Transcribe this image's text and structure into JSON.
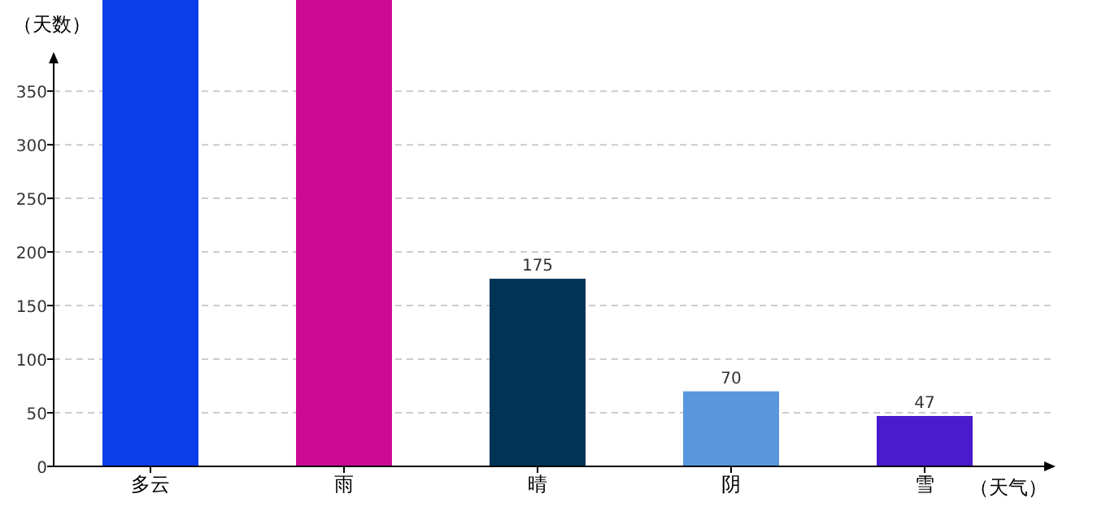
{
  "chart_data": {
    "type": "bar",
    "ylabel": "（天数）",
    "xlabel": "（天气）",
    "categories": [
      "多云",
      "雨",
      "晴",
      "阴",
      "雪"
    ],
    "values": [
      435,
      435,
      175,
      70,
      47
    ],
    "value_labels": [
      null,
      null,
      "175",
      "70",
      "47"
    ],
    "colors": [
      "#0a3ee8",
      "#cc0a94",
      "#003355",
      "#5a96dc",
      "#4a1acc"
    ],
    "ylim": [
      0,
      435
    ],
    "yticks": [
      0,
      50,
      100,
      150,
      200,
      250,
      300,
      350
    ],
    "grid": "y"
  }
}
